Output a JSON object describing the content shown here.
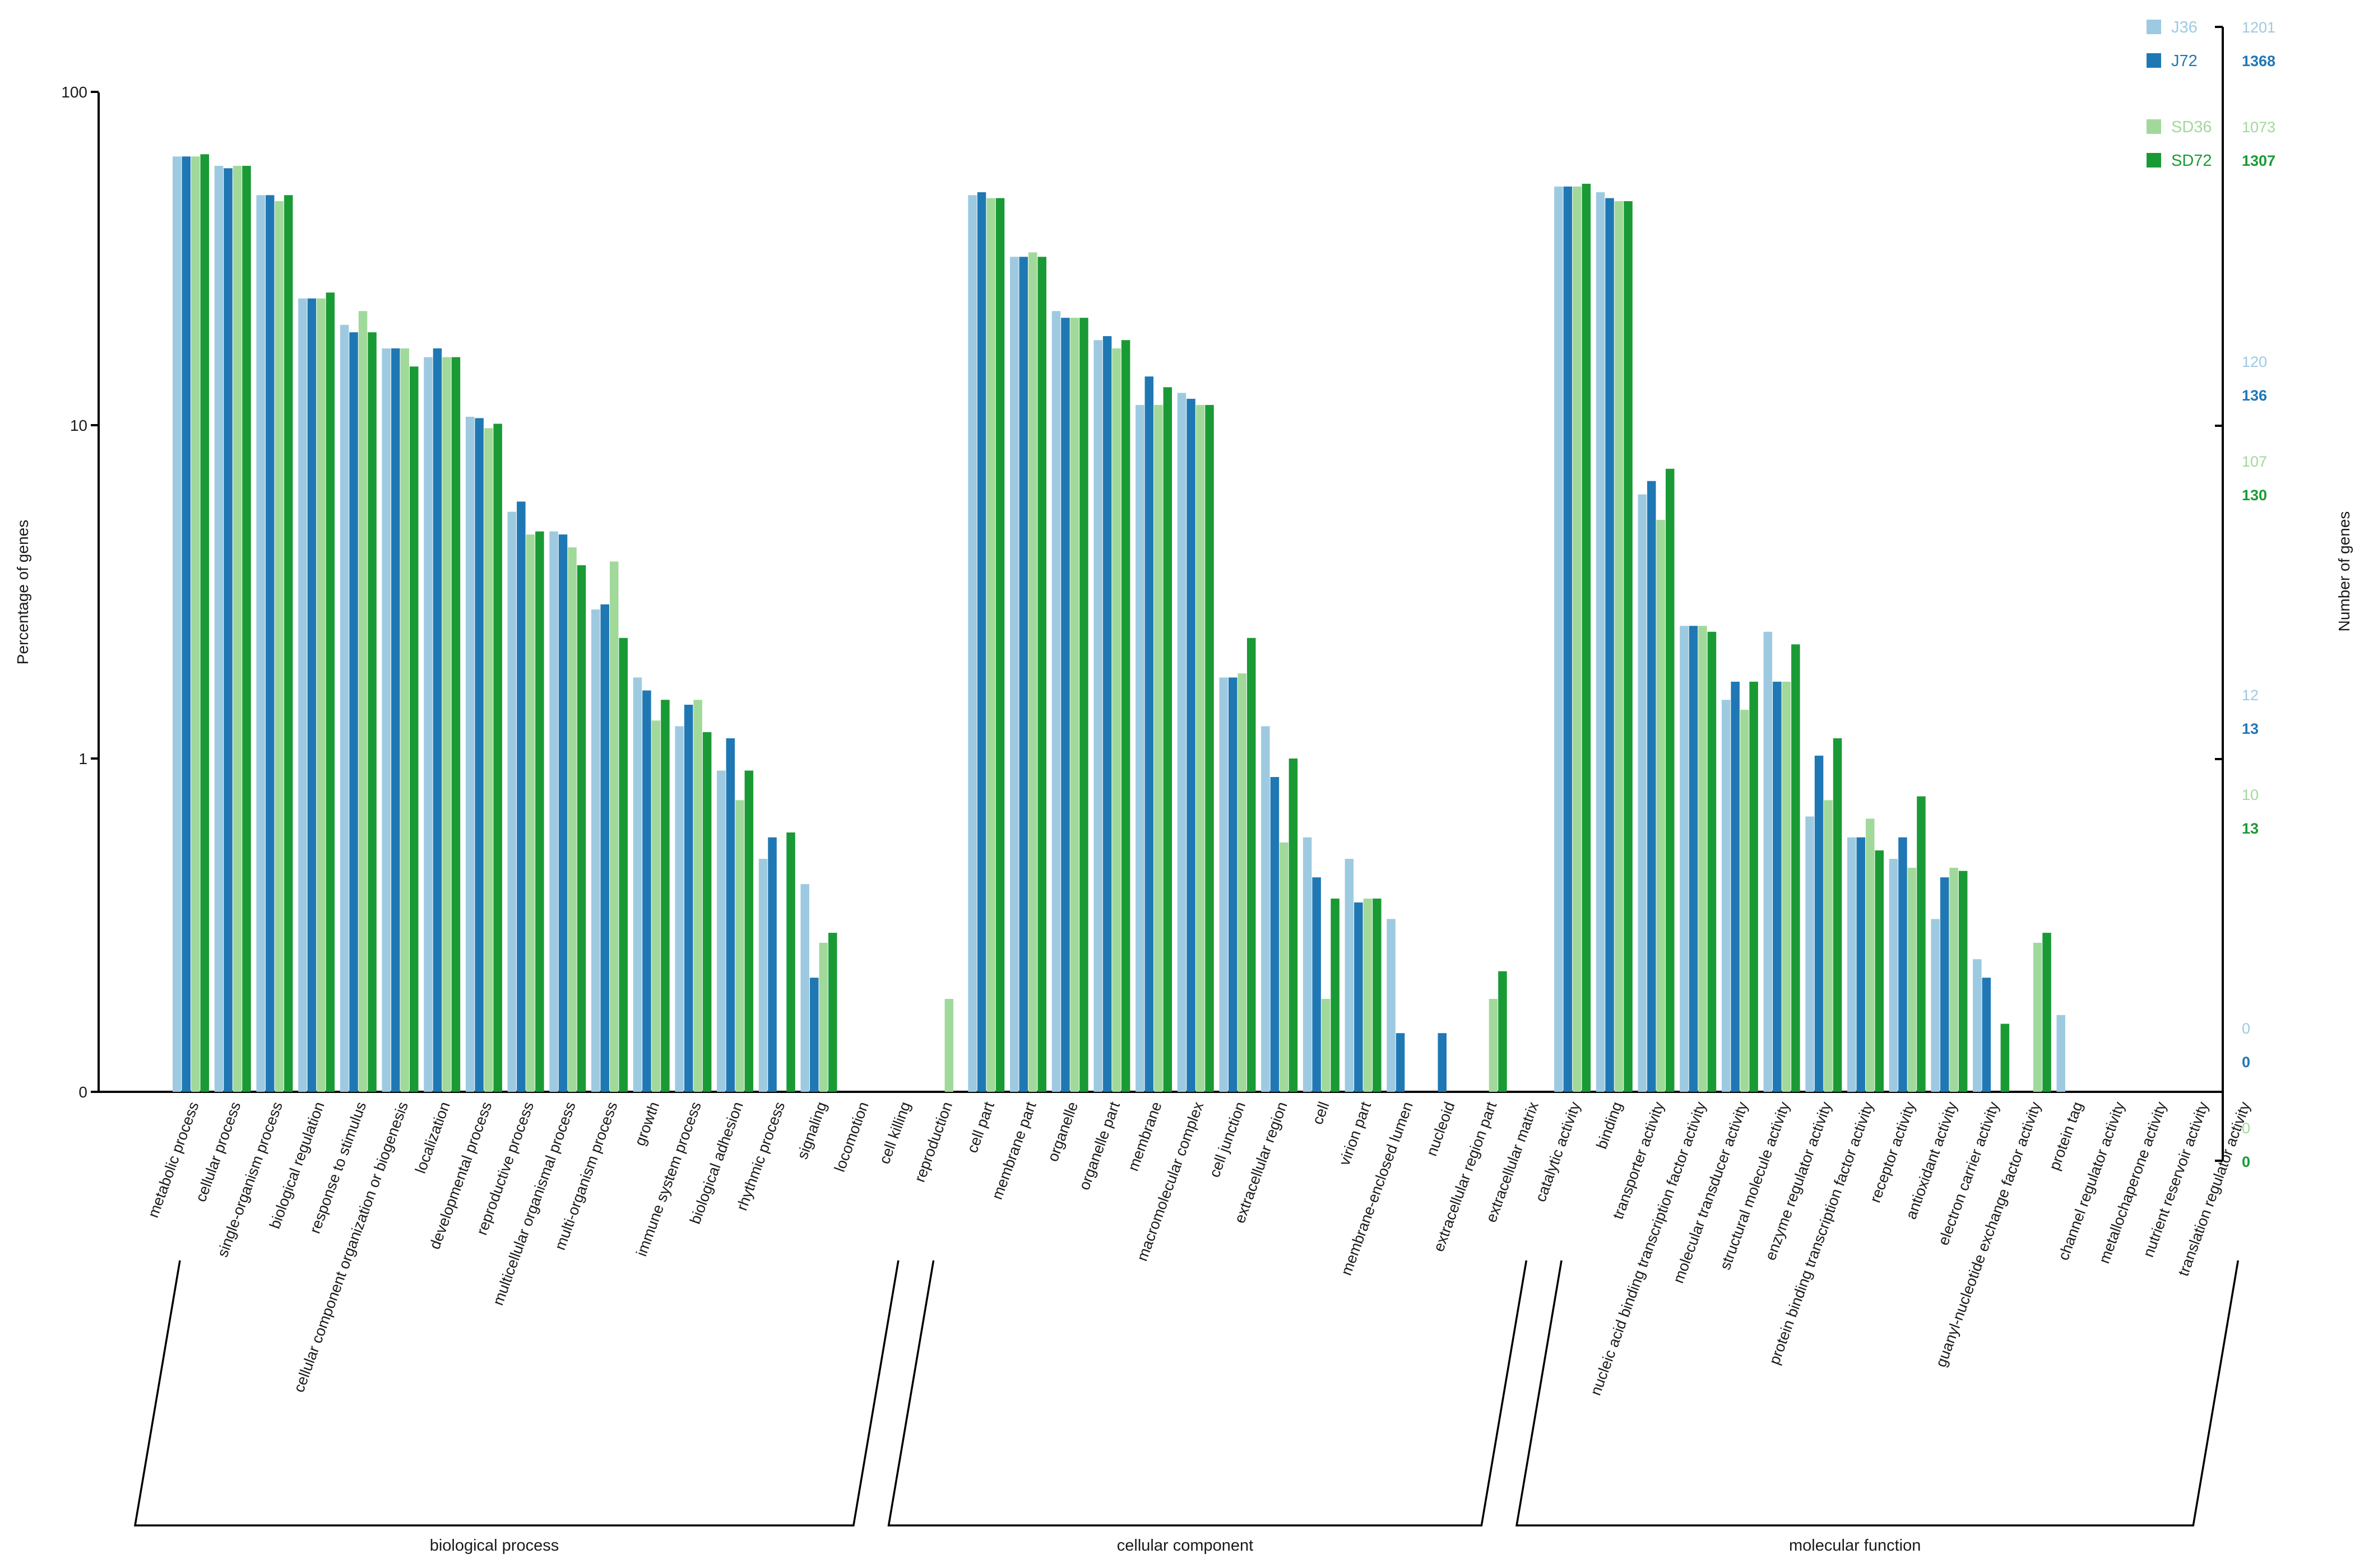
{
  "chart_data": {
    "type": "bar",
    "y_scale": "log",
    "ylabel": "Percentage of genes",
    "y2label": "Number of genes",
    "y_ticks": [
      "0",
      "1",
      "10",
      "100"
    ],
    "legend_position": "top-right",
    "series": [
      {
        "name": "J36",
        "color": "#9ecae1",
        "right_axis_labels": [
          "1201",
          "120",
          "12",
          "0"
        ]
      },
      {
        "name": "J72",
        "color": "#1f78b4",
        "right_axis_labels": [
          "1368",
          "136",
          "13",
          "0"
        ]
      },
      {
        "name": "SD36",
        "color": "#a1d99b",
        "right_axis_labels": [
          "1073",
          "107",
          "10",
          "0"
        ]
      },
      {
        "name": "SD72",
        "color": "#1a9a35",
        "right_axis_labels": [
          "1307",
          "130",
          "13",
          "0"
        ]
      }
    ],
    "groups": [
      {
        "name": "biological process",
        "first": 0,
        "last": 17
      },
      {
        "name": "cellular component",
        "first": 18,
        "last": 32
      },
      {
        "name": "molecular function",
        "first": 33,
        "last": 49
      }
    ],
    "categories": [
      {
        "label": "metabolic process",
        "values": [
          64,
          64,
          64,
          65
        ]
      },
      {
        "label": "cellular process",
        "values": [
          60,
          59,
          60,
          60
        ]
      },
      {
        "label": "single-organism process",
        "values": [
          49,
          49,
          47,
          49
        ]
      },
      {
        "label": "biological regulation",
        "values": [
          24,
          24,
          24,
          25
        ]
      },
      {
        "label": "response to stimulus",
        "values": [
          20,
          19,
          22,
          19
        ]
      },
      {
        "label": "cellular component organization or biogenesis",
        "values": [
          17,
          17,
          17,
          15
        ]
      },
      {
        "label": "localization",
        "values": [
          16,
          17,
          16,
          16
        ]
      },
      {
        "label": "developmental process",
        "values": [
          10.6,
          10.5,
          9.8,
          10.1
        ]
      },
      {
        "label": "reproductive process",
        "values": [
          5.5,
          5.9,
          4.7,
          4.8
        ]
      },
      {
        "label": "multicellular organismal process",
        "values": [
          4.8,
          4.7,
          4.3,
          3.8
        ]
      },
      {
        "label": "multi-organism process",
        "values": [
          2.8,
          2.9,
          3.9,
          2.3
        ]
      },
      {
        "label": "growth",
        "values": [
          1.75,
          1.6,
          1.3,
          1.5
        ]
      },
      {
        "label": "immune system process",
        "values": [
          1.25,
          1.45,
          1.5,
          1.2
        ]
      },
      {
        "label": "biological adhesion",
        "values": [
          0.92,
          1.15,
          0.75,
          0.92
        ]
      },
      {
        "label": "rhythmic process",
        "values": [
          0.5,
          0.58,
          0.0,
          0.6
        ]
      },
      {
        "label": "signaling",
        "values": [
          0.42,
          0.22,
          0.28,
          0.3
        ]
      },
      {
        "label": "locomotion",
        "values": [
          0.0,
          0.0,
          0.0,
          0.0
        ]
      },
      {
        "label": "cell killing",
        "values": [
          0.0,
          0.0,
          0.0,
          0.0
        ]
      },
      {
        "label": "reproduction",
        "values": [
          0.0,
          0.0,
          0.19,
          0.0
        ]
      },
      {
        "label": "cell part",
        "values": [
          49,
          50,
          48,
          48
        ]
      },
      {
        "label": "membrane part",
        "values": [
          32,
          32,
          33,
          32
        ]
      },
      {
        "label": "organelle",
        "values": [
          22,
          21,
          21,
          21
        ]
      },
      {
        "label": "organelle part",
        "values": [
          18,
          18.5,
          17,
          18
        ]
      },
      {
        "label": "membrane",
        "values": [
          11.5,
          14,
          11.5,
          13
        ]
      },
      {
        "label": "macromolecular complex",
        "values": [
          12.5,
          12,
          11.5,
          11.5
        ]
      },
      {
        "label": "cell junction",
        "values": [
          1.75,
          1.75,
          1.8,
          2.3
        ]
      },
      {
        "label": "extracellular region",
        "values": [
          1.25,
          0.88,
          0.56,
          1.0
        ]
      },
      {
        "label": "cell",
        "values": [
          0.58,
          0.44,
          0.19,
          0.38
        ]
      },
      {
        "label": "virion part",
        "values": [
          0.5,
          0.37,
          0.38,
          0.38
        ]
      },
      {
        "label": "membrane-enclosed lumen",
        "values": [
          0.33,
          0.15,
          0.0,
          0.0
        ]
      },
      {
        "label": "nucleoid",
        "values": [
          0.0,
          0.15,
          0.0,
          0.0
        ]
      },
      {
        "label": "extracellular region part",
        "values": [
          0.0,
          0.0,
          0.19,
          0.23
        ]
      },
      {
        "label": "extracellular matrix",
        "values": [
          0.0,
          0.0,
          0.0,
          0.0
        ]
      },
      {
        "label": "catalytic activity",
        "values": [
          52,
          52,
          52,
          53
        ]
      },
      {
        "label": "binding",
        "values": [
          50,
          48,
          47,
          47
        ]
      },
      {
        "label": "transporter activity",
        "values": [
          6.2,
          6.8,
          5.2,
          7.4
        ]
      },
      {
        "label": "nucleic acid binding transcription factor activity",
        "values": [
          2.5,
          2.5,
          2.5,
          2.4
        ]
      },
      {
        "label": "molecular transducer activity",
        "values": [
          1.5,
          1.7,
          1.4,
          1.7
        ]
      },
      {
        "label": "structural molecule activity",
        "values": [
          2.4,
          1.7,
          1.7,
          2.2
        ]
      },
      {
        "label": "enzyme regulator activity",
        "values": [
          0.67,
          1.02,
          0.75,
          1.15
        ]
      },
      {
        "label": "protein binding transcription factor activity",
        "values": [
          0.58,
          0.58,
          0.66,
          0.53
        ]
      },
      {
        "label": "receptor activity",
        "values": [
          0.5,
          0.58,
          0.47,
          0.77
        ]
      },
      {
        "label": "antioxidant activity",
        "values": [
          0.33,
          0.44,
          0.47,
          0.46
        ]
      },
      {
        "label": "electron carrier activity",
        "values": [
          0.25,
          0.22,
          0.0,
          0.16
        ]
      },
      {
        "label": "guanyl-nucleotide exchange factor activity",
        "values": [
          0.0,
          0.0,
          0.28,
          0.3
        ]
      },
      {
        "label": "protein tag",
        "values": [
          0.17,
          0.0,
          0.0,
          0.0
        ]
      },
      {
        "label": "channel regulator activity",
        "values": [
          0.0,
          0.0,
          0.0,
          0.0
        ]
      },
      {
        "label": "metallochaperone activity",
        "values": [
          0.0,
          0.0,
          0.0,
          0.0
        ]
      },
      {
        "label": "nutrient reservoir activity",
        "values": [
          0.0,
          0.0,
          0.0,
          0.0
        ]
      },
      {
        "label": "translation regulator activity",
        "values": [
          0.0,
          0.0,
          0.0,
          0.0
        ]
      }
    ]
  }
}
